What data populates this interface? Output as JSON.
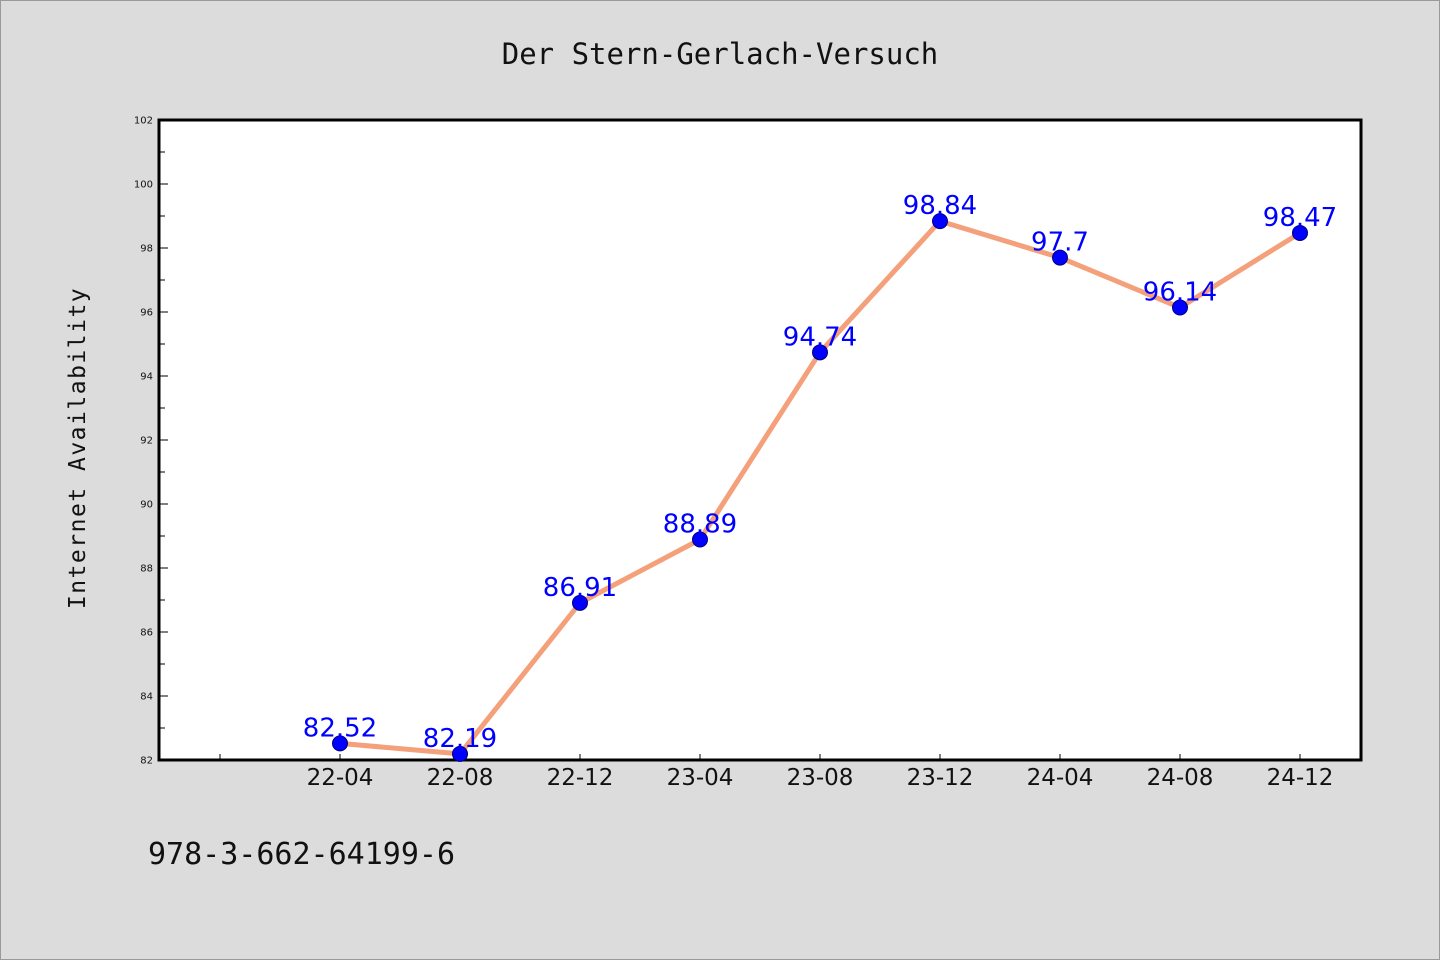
{
  "chart_data": {
    "type": "line",
    "title": "Der Stern-Gerlach-Versuch",
    "xlabel": "",
    "ylabel": "Internet Availability",
    "categories": [
      "22-04",
      "22-08",
      "22-12",
      "23-04",
      "23-08",
      "23-12",
      "24-04",
      "24-08",
      "24-12"
    ],
    "values": [
      82.52,
      82.19,
      86.91,
      88.89,
      94.74,
      98.84,
      97.7,
      96.14,
      98.47
    ],
    "point_labels": [
      "82.52",
      "82.19",
      "86.91",
      "88.89",
      "94.74",
      "98.84",
      "97.7",
      "96.14",
      "98.47"
    ],
    "ylim": [
      82,
      102
    ],
    "yticks": [
      "82",
      "84",
      "86",
      "88",
      "90",
      "92",
      "94",
      "96",
      "98",
      "100",
      "102"
    ],
    "grid": false,
    "legend": "none",
    "colors": {
      "line": "#f4a07a",
      "marker": "#0000ff",
      "label": "#0000ff",
      "background": "#dcdcdc",
      "plot_area": "#ffffff"
    }
  },
  "footer": {
    "code": "978-3-662-64199-6"
  }
}
